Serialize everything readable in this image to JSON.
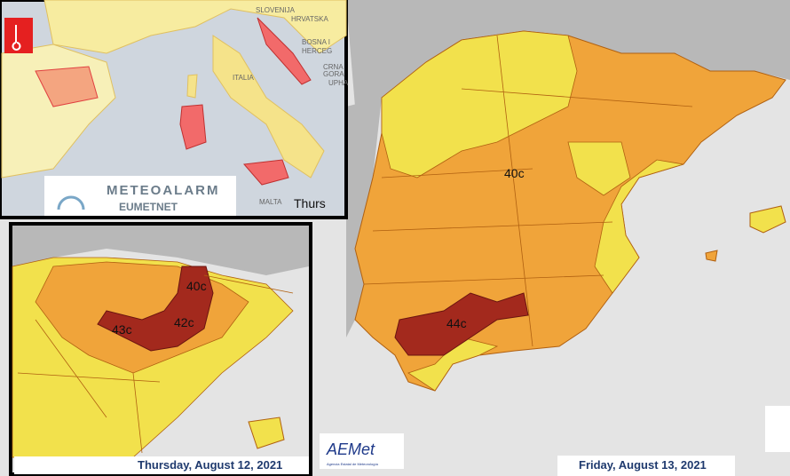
{
  "main_map": {
    "labels": [
      "40c",
      "44c"
    ],
    "date": "Friday, August 13, 2021"
  },
  "europe_inset": {
    "place_labels": [
      "SLOVENIJA",
      "HRVATSKA",
      "BOSNA I",
      "HERCEG",
      "CRNA",
      "GORA",
      "UPHA",
      "ITALIA",
      "MALTA"
    ],
    "day": "Thurs",
    "logo_title": "METEOALARM",
    "logo_subtitle": "EUMETNET"
  },
  "spain_inset": {
    "labels": [
      "40c",
      "43c",
      "42c"
    ],
    "date": "Thursday, August 12, 2021"
  },
  "aemet_logo": {
    "name": "AEMet",
    "subtitle": "Agencia Estatal de Meteorología"
  }
}
